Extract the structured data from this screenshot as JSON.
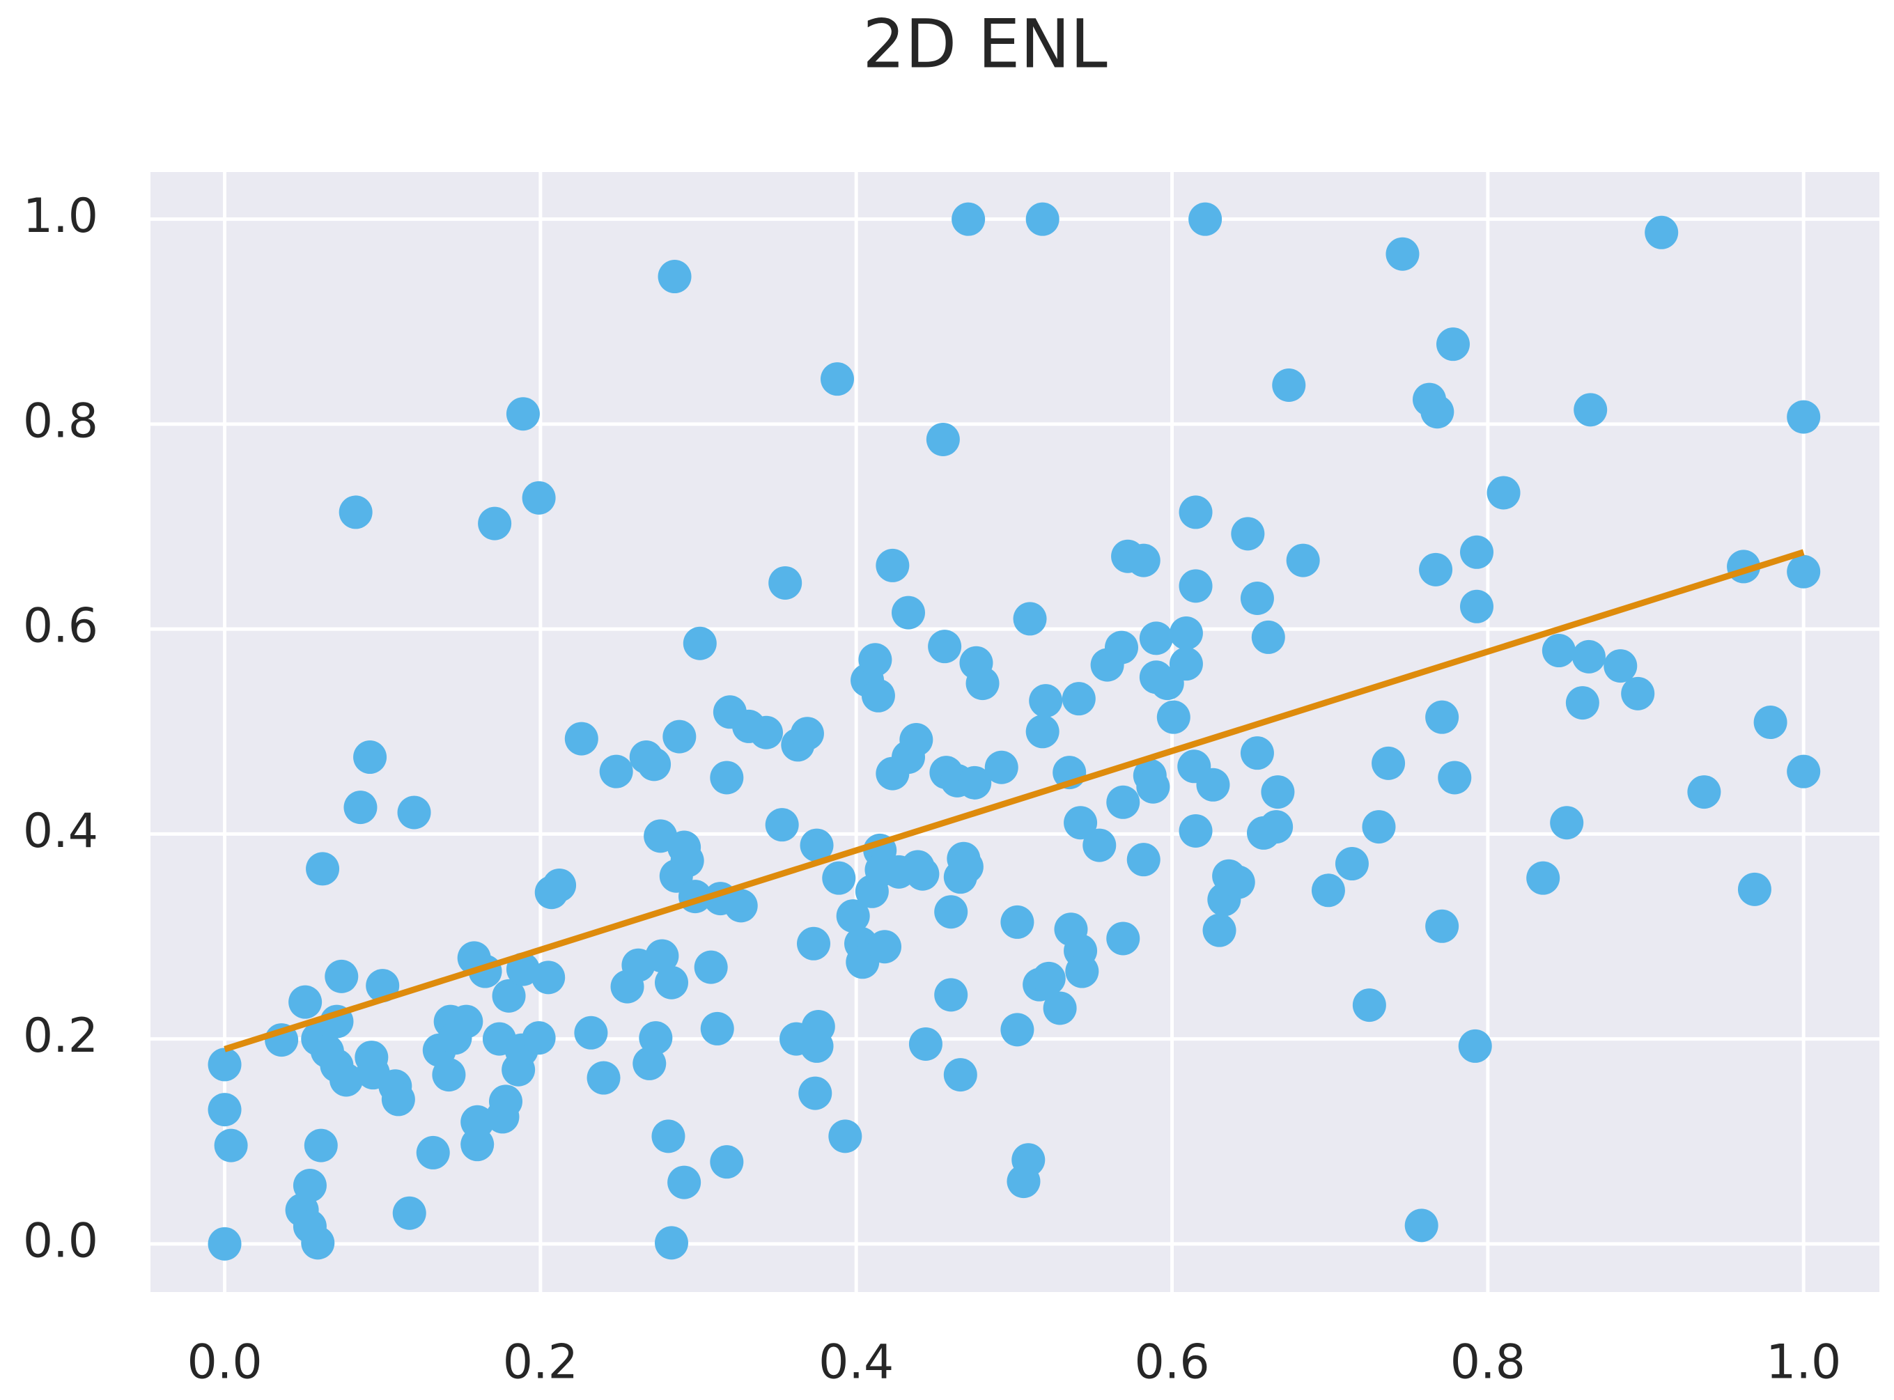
{
  "chart_data": {
    "type": "scatter",
    "title": "2D ENL",
    "xlim": [
      -0.047,
      1.048
    ],
    "ylim": [
      -0.047,
      1.046
    ],
    "xticks": [
      {
        "value": 0,
        "label": "0.0"
      },
      0.2,
      0.4,
      0.6,
      0.8,
      {
        "value": 1,
        "label": "1.0"
      }
    ],
    "yticks": [
      {
        "value": 0,
        "label": "0.0"
      },
      0.2,
      0.4,
      0.6,
      0.8,
      {
        "value": 1,
        "label": "1.0"
      }
    ],
    "grid": true,
    "series": [
      {
        "color": "#56b4e9",
        "x": [
          0,
          0,
          0,
          0.004,
          0.036,
          0.051,
          0.059,
          0.065,
          0.071,
          0.074,
          0.071,
          0.077,
          0.062,
          0.061,
          0.054,
          0.049,
          0.054,
          0.059,
          0.083,
          0.086,
          0.092,
          0.093,
          0.1,
          0.094,
          0.108,
          0.11,
          0.12,
          0.117,
          0.132,
          0.136,
          0.142,
          0.143,
          0.146,
          0.153,
          0.158,
          0.165,
          0.16,
          0.16,
          0.171,
          0.174,
          0.176,
          0.178,
          0.18,
          0.186,
          0.188,
          0.189,
          0.189,
          0.199,
          0.199,
          0.205,
          0.207,
          0.212,
          0.226,
          0.232,
          0.24,
          0.248,
          0.255,
          0.262,
          0.267,
          0.272,
          0.269,
          0.273,
          0.276,
          0.277,
          0.281,
          0.283,
          0.283,
          0.285,
          0.286,
          0.288,
          0.291,
          0.291,
          0.293,
          0.298,
          0.301,
          0.308,
          0.312,
          0.314,
          0.318,
          0.318,
          0.32,
          0.327,
          0.332,
          0.343,
          0.353,
          0.355,
          0.362,
          0.363,
          0.369,
          0.373,
          0.374,
          0.375,
          0.376,
          0.375,
          0.388,
          0.389,
          0.393,
          0.398,
          0.403,
          0.404,
          0.407,
          0.41,
          0.412,
          0.414,
          0.415,
          0.416,
          0.418,
          0.423,
          0.423,
          0.427,
          0.433,
          0.433,
          0.438,
          0.439,
          0.442,
          0.444,
          0.455,
          0.456,
          0.457,
          0.46,
          0.46,
          0.464,
          0.466,
          0.466,
          0.468,
          0.47,
          0.471,
          0.475,
          0.476,
          0.48,
          0.492,
          0.502,
          0.502,
          0.506,
          0.509,
          0.51,
          0.516,
          0.518,
          0.518,
          0.52,
          0.522,
          0.529,
          0.535,
          0.536,
          0.541,
          0.542,
          0.542,
          0.543,
          0.554,
          0.559,
          0.568,
          0.569,
          0.569,
          0.572,
          0.582,
          0.582,
          0.586,
          0.588,
          0.59,
          0.59,
          0.597,
          0.601,
          0.609,
          0.609,
          0.614,
          0.615,
          0.615,
          0.615,
          0.621,
          0.626,
          0.63,
          0.633,
          0.636,
          0.642,
          0.648,
          0.654,
          0.654,
          0.658,
          0.661,
          0.666,
          0.667,
          0.674,
          0.683,
          0.699,
          0.714,
          0.725,
          0.731,
          0.737,
          0.746,
          0.758,
          0.763,
          0.767,
          0.768,
          0.771,
          0.771,
          0.778,
          0.779,
          0.792,
          0.793,
          0.793,
          0.81,
          0.835,
          0.845,
          0.85,
          0.86,
          0.864,
          0.865,
          0.884,
          0.895,
          0.91,
          0.937,
          0.962,
          0.969,
          0.979,
          1,
          1,
          1
        ],
        "y": [
          0,
          0.175,
          0.131,
          0.096,
          0.199,
          0.236,
          0.2,
          0.188,
          0.217,
          0.261,
          0.174,
          0.16,
          0.366,
          0.096,
          0.057,
          0.033,
          0.017,
          0.001,
          0.714,
          0.426,
          0.475,
          0.182,
          0.252,
          0.167,
          0.154,
          0.141,
          0.421,
          0.03,
          0.089,
          0.189,
          0.165,
          0.217,
          0.201,
          0.217,
          0.279,
          0.266,
          0.119,
          0.097,
          0.703,
          0.2,
          0.124,
          0.139,
          0.242,
          0.17,
          0.189,
          0.81,
          0.268,
          0.728,
          0.201,
          0.26,
          0.343,
          0.35,
          0.493,
          0.206,
          0.162,
          0.461,
          0.251,
          0.272,
          0.475,
          0.468,
          0.176,
          0.201,
          0.398,
          0.281,
          0.105,
          0.255,
          0.001,
          0.944,
          0.359,
          0.495,
          0.06,
          0.387,
          0.374,
          0.339,
          0.586,
          0.27,
          0.21,
          0.337,
          0.455,
          0.08,
          0.519,
          0.33,
          0.505,
          0.499,
          0.409,
          0.645,
          0.2,
          0.487,
          0.498,
          0.293,
          0.147,
          0.193,
          0.212,
          0.389,
          0.844,
          0.357,
          0.105,
          0.32,
          0.293,
          0.275,
          0.55,
          0.344,
          0.57,
          0.535,
          0.384,
          0.365,
          0.29,
          0.662,
          0.459,
          0.363,
          0.616,
          0.475,
          0.492,
          0.368,
          0.361,
          0.195,
          0.785,
          0.583,
          0.46,
          0.324,
          0.243,
          0.452,
          0.165,
          0.358,
          0.376,
          0.368,
          1,
          0.45,
          0.567,
          0.547,
          0.465,
          0.314,
          0.209,
          0.061,
          0.082,
          0.61,
          0.253,
          1,
          0.5,
          0.53,
          0.259,
          0.23,
          0.46,
          0.307,
          0.532,
          0.411,
          0.286,
          0.266,
          0.389,
          0.565,
          0.582,
          0.298,
          0.431,
          0.671,
          0.667,
          0.375,
          0.457,
          0.446,
          0.591,
          0.553,
          0.547,
          0.514,
          0.596,
          0.566,
          0.466,
          0.403,
          0.714,
          0.642,
          1,
          0.448,
          0.306,
          0.336,
          0.359,
          0.353,
          0.693,
          0.63,
          0.479,
          0.401,
          0.592,
          0.407,
          0.441,
          0.838,
          0.667,
          0.345,
          0.371,
          0.233,
          0.407,
          0.469,
          0.966,
          0.018,
          0.824,
          0.658,
          0.812,
          0.31,
          0.514,
          0.878,
          0.455,
          0.193,
          0.622,
          0.675,
          0.733,
          0.357,
          0.579,
          0.411,
          0.528,
          0.573,
          0.814,
          0.564,
          0.537,
          0.987,
          0.441,
          0.661,
          0.346,
          0.509,
          0.807,
          0.656,
          0.461
        ]
      }
    ],
    "fit": {
      "color": "#de8b0c",
      "x": [
        0,
        1
      ],
      "y": [
        0.19,
        0.675
      ]
    }
  }
}
